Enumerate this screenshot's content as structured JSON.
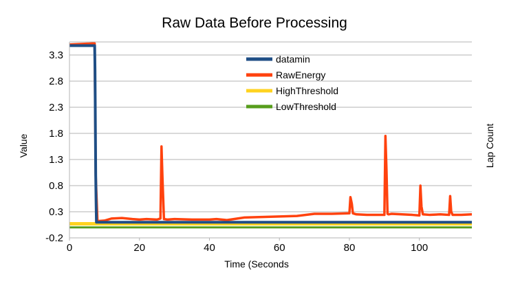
{
  "chart_data": {
    "type": "line",
    "title": "Raw Data Before Processing",
    "xlabel": "Time (Seconds",
    "ylabel": "Value",
    "y2label": "Lap Count",
    "xlim": [
      0,
      115
    ],
    "ylim": [
      -0.2,
      3.55
    ],
    "xticks": [
      0,
      20,
      40,
      60,
      80,
      100
    ],
    "yticks": [
      -0.2,
      0.3,
      0.8,
      1.3,
      1.8,
      2.3,
      2.8,
      3.3
    ],
    "grid": true,
    "legend_position": "top-center",
    "series": [
      {
        "name": "datamin",
        "color": "#1f4e85",
        "x": [
          0,
          7.2,
          7.3,
          7.4,
          7.5,
          7.6,
          7.7,
          115
        ],
        "y": [
          3.48,
          3.48,
          3.0,
          2.0,
          1.0,
          0.5,
          0.1,
          0.1
        ]
      },
      {
        "name": "RawEnergy",
        "color": "#ff420e",
        "x": [
          0,
          6.5,
          7.2,
          7.5,
          8,
          10,
          12,
          15,
          18,
          20,
          22,
          25,
          26,
          26.3,
          26.6,
          27,
          28,
          30,
          35,
          40,
          42,
          45,
          48,
          50,
          55,
          60,
          65,
          70,
          75,
          80,
          80.3,
          80.7,
          81,
          82,
          85,
          88,
          90,
          90.3,
          90.6,
          90.9,
          91.2,
          92,
          95,
          98,
          100,
          100.3,
          100.6,
          101,
          103,
          106,
          108.5,
          108.8,
          109.1,
          109.5,
          112,
          115
        ],
        "y": [
          3.5,
          3.52,
          3.52,
          1.0,
          0.12,
          0.13,
          0.17,
          0.18,
          0.16,
          0.15,
          0.16,
          0.15,
          0.17,
          1.55,
          0.9,
          0.16,
          0.15,
          0.16,
          0.15,
          0.15,
          0.16,
          0.14,
          0.17,
          0.19,
          0.2,
          0.21,
          0.22,
          0.26,
          0.26,
          0.27,
          0.58,
          0.45,
          0.27,
          0.25,
          0.24,
          0.24,
          0.24,
          1.75,
          1.1,
          0.26,
          0.25,
          0.26,
          0.25,
          0.24,
          0.23,
          0.8,
          0.4,
          0.25,
          0.24,
          0.25,
          0.24,
          0.6,
          0.3,
          0.24,
          0.24,
          0.25
        ]
      },
      {
        "name": "HighThreshold",
        "color": "#ffd320",
        "x": [
          0,
          115
        ],
        "y": [
          0.07,
          0.07
        ]
      },
      {
        "name": "LowThreshold",
        "color": "#579d1c",
        "x": [
          0,
          115
        ],
        "y": [
          0.0,
          0.0
        ]
      }
    ]
  }
}
